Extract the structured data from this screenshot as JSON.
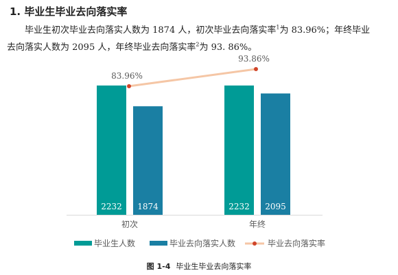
{
  "section": {
    "number": "1.",
    "title": "毕业生毕业去向落实率"
  },
  "paragraph": {
    "line1_a": "毕业生初次毕业去向落实人数为 1874 人，初次毕业去向落实率",
    "sup1": "1",
    "line1_b": "为 83.96%；年终毕业",
    "line2_a": "去向落实人数为 2095 人，年终毕业去向落实率",
    "sup2": "2",
    "line2_b": "为 93. 86%。"
  },
  "colors": {
    "graduates": "#009b96",
    "placed": "#1a7fa3",
    "rate_line": "#f5c6a5",
    "rate_marker": "#d0452a"
  },
  "chart_data": {
    "type": "bar",
    "categories": [
      "初次",
      "年终"
    ],
    "series": [
      {
        "name": "毕业生人数",
        "type": "bar",
        "values": [
          2232,
          2232
        ],
        "value_labels": [
          "2232",
          "2232"
        ]
      },
      {
        "name": "毕业去向落实人数",
        "type": "bar",
        "values": [
          1874,
          2095
        ],
        "value_labels": [
          "1874",
          "2095"
        ]
      },
      {
        "name": "毕业去向落实率",
        "type": "line",
        "values": [
          83.96,
          93.86
        ],
        "value_labels": [
          "83.96%",
          "93.86%"
        ]
      }
    ],
    "legend": [
      "毕业生人数",
      "毕业去向落实人数",
      "毕业去向落实率"
    ],
    "legend_position": "bottom",
    "grid": false,
    "y_axis_visible": false
  },
  "caption": {
    "figure": "图 1-4",
    "text": "毕业生毕业去向落实率"
  }
}
